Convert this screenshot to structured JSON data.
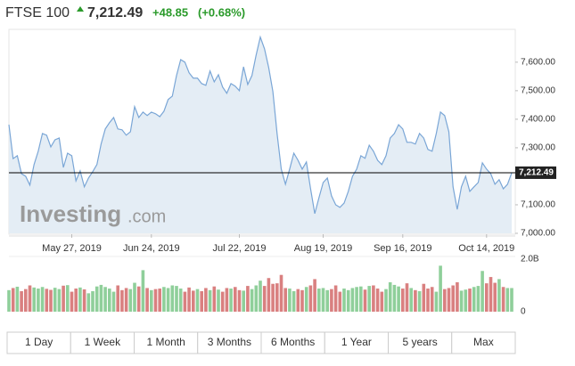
{
  "header": {
    "name": "FTSE 100",
    "price": "7,212.49",
    "change": "+48.85",
    "change_pct": "(+0.68%)"
  },
  "logo": "Investing",
  "logo_suffix": ".com",
  "chart_data": [
    {
      "type": "line",
      "series": [
        {
          "name": "FTSE 100",
          "color": "#7aa6d6",
          "fill": "#e4edf5",
          "values": [
            7381,
            7262,
            7272,
            7209,
            7200,
            7169,
            7241,
            7288,
            7350,
            7344,
            7303,
            7328,
            7334,
            7231,
            7281,
            7272,
            7184,
            7219,
            7163,
            7194,
            7216,
            7241,
            7313,
            7366,
            7388,
            7406,
            7366,
            7363,
            7344,
            7356,
            7444,
            7406,
            7425,
            7413,
            7425,
            7419,
            7409,
            7428,
            7469,
            7481,
            7553,
            7609,
            7600,
            7563,
            7544,
            7544,
            7525,
            7519,
            7569,
            7531,
            7556,
            7513,
            7491,
            7525,
            7516,
            7500,
            7584,
            7522,
            7553,
            7625,
            7688,
            7647,
            7581,
            7497,
            7350,
            7225,
            7172,
            7225,
            7281,
            7256,
            7225,
            7250,
            7156,
            7069,
            7125,
            7178,
            7194,
            7131,
            7100,
            7091,
            7106,
            7147,
            7200,
            7225,
            7272,
            7263,
            7309,
            7288,
            7256,
            7241,
            7272,
            7334,
            7350,
            7381,
            7366,
            7319,
            7319,
            7313,
            7350,
            7334,
            7294,
            7288,
            7350,
            7425,
            7413,
            7356,
            7163,
            7084,
            7163,
            7200,
            7147,
            7163,
            7178,
            7247,
            7225,
            7209,
            7172,
            7188,
            7156,
            7172,
            7212
          ]
        }
      ],
      "xlim": [
        0,
        120
      ],
      "xticks": [
        {
          "value": 15,
          "label": "May 27, 2019"
        },
        {
          "value": 34,
          "label": "Jun 24, 2019"
        },
        {
          "value": 55,
          "label": "Jul 22, 2019"
        },
        {
          "value": 75,
          "label": "Aug 19, 2019"
        },
        {
          "value": 94,
          "label": "Sep 16, 2019"
        },
        {
          "value": 114,
          "label": "Oct 14, 2019"
        }
      ],
      "ylim": [
        7000,
        7715
      ],
      "yticks": [
        {
          "value": 7000,
          "label": "7,000.00"
        },
        {
          "value": 7100,
          "label": "7,100.00"
        },
        {
          "value": 7300,
          "label": "7,300.00"
        },
        {
          "value": 7400,
          "label": "7,400.00"
        },
        {
          "value": 7500,
          "label": "7,500.00"
        },
        {
          "value": 7600,
          "label": "7,600.00"
        }
      ],
      "current": {
        "value": 7212.49,
        "label": "7,212.49"
      }
    },
    {
      "type": "bar",
      "up_color": "#8fcf9a",
      "down_color": "#d98080",
      "values": [
        820000000,
        900000000,
        950000000,
        780000000,
        860000000,
        1000000000,
        920000000,
        880000000,
        940000000,
        870000000,
        830000000,
        910000000,
        860000000,
        990000000,
        1010000000,
        760000000,
        880000000,
        920000000,
        850000000,
        700000000,
        780000000,
        960000000,
        1020000000,
        940000000,
        880000000,
        760000000,
        1000000000,
        820000000,
        900000000,
        860000000,
        1100000000,
        960000000,
        1580000000,
        900000000,
        820000000,
        860000000,
        880000000,
        940000000,
        900000000,
        1000000000,
        980000000,
        880000000,
        760000000,
        920000000,
        800000000,
        860000000,
        780000000,
        900000000,
        820000000,
        960000000,
        840000000,
        760000000,
        900000000,
        880000000,
        940000000,
        820000000,
        800000000,
        980000000,
        860000000,
        1000000000,
        1180000000,
        980000000,
        1280000000,
        1060000000,
        1080000000,
        1400000000,
        900000000,
        880000000,
        780000000,
        860000000,
        820000000,
        940000000,
        1000000000,
        1240000000,
        880000000,
        900000000,
        820000000,
        860000000,
        1000000000,
        760000000,
        880000000,
        820000000,
        900000000,
        940000000,
        960000000,
        840000000,
        980000000,
        1000000000,
        880000000,
        760000000,
        860000000,
        1120000000,
        1020000000,
        960000000,
        880000000,
        1080000000,
        900000000,
        820000000,
        780000000,
        1060000000,
        880000000,
        940000000,
        760000000,
        1750000000,
        860000000,
        900000000,
        1000000000,
        1120000000,
        800000000,
        840000000,
        880000000,
        940000000,
        980000000,
        1550000000,
        1080000000,
        1320000000,
        1100000000,
        1240000000,
        940000000,
        900000000,
        900000000
      ],
      "ylim": [
        0,
        2000000000
      ],
      "yticks": [
        0,
        {
          "value": 2000000000,
          "label": "2.0B"
        }
      ]
    }
  ],
  "buttons": [
    "1 Day",
    "1 Week",
    "1 Month",
    "3 Months",
    "6 Months",
    "1 Year",
    "5 years",
    "Max"
  ]
}
